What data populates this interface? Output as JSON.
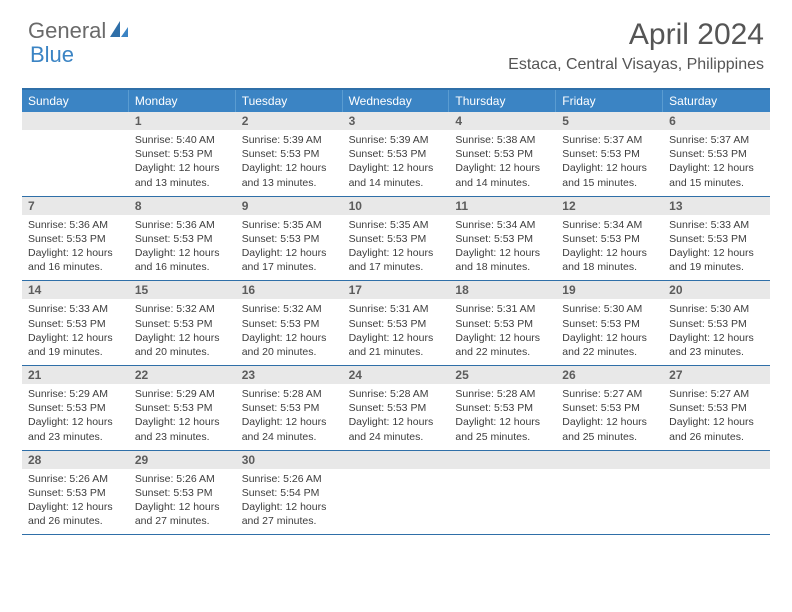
{
  "logo": {
    "general": "General",
    "blue": "Blue"
  },
  "title": "April 2024",
  "location": "Estaca, Central Visayas, Philippines",
  "colors": {
    "header_bg": "#3b84c4",
    "header_border_top": "#2f6fa8",
    "week_divider": "#2f6fa8",
    "daynum_bg": "#e8e8e8",
    "text": "#3d3d3d",
    "logo_gray": "#6a6a6a",
    "logo_blue": "#3b84c4"
  },
  "typography": {
    "title_fontsize": 30,
    "location_fontsize": 16,
    "weekday_fontsize": 12,
    "daynum_fontsize": 12,
    "body_fontsize": 10.5
  },
  "weekdays": [
    "Sunday",
    "Monday",
    "Tuesday",
    "Wednesday",
    "Thursday",
    "Friday",
    "Saturday"
  ],
  "weeks": [
    [
      {
        "n": "",
        "lines": []
      },
      {
        "n": "1",
        "lines": [
          "Sunrise: 5:40 AM",
          "Sunset: 5:53 PM",
          "Daylight: 12 hours",
          "and 13 minutes."
        ]
      },
      {
        "n": "2",
        "lines": [
          "Sunrise: 5:39 AM",
          "Sunset: 5:53 PM",
          "Daylight: 12 hours",
          "and 13 minutes."
        ]
      },
      {
        "n": "3",
        "lines": [
          "Sunrise: 5:39 AM",
          "Sunset: 5:53 PM",
          "Daylight: 12 hours",
          "and 14 minutes."
        ]
      },
      {
        "n": "4",
        "lines": [
          "Sunrise: 5:38 AM",
          "Sunset: 5:53 PM",
          "Daylight: 12 hours",
          "and 14 minutes."
        ]
      },
      {
        "n": "5",
        "lines": [
          "Sunrise: 5:37 AM",
          "Sunset: 5:53 PM",
          "Daylight: 12 hours",
          "and 15 minutes."
        ]
      },
      {
        "n": "6",
        "lines": [
          "Sunrise: 5:37 AM",
          "Sunset: 5:53 PM",
          "Daylight: 12 hours",
          "and 15 minutes."
        ]
      }
    ],
    [
      {
        "n": "7",
        "lines": [
          "Sunrise: 5:36 AM",
          "Sunset: 5:53 PM",
          "Daylight: 12 hours",
          "and 16 minutes."
        ]
      },
      {
        "n": "8",
        "lines": [
          "Sunrise: 5:36 AM",
          "Sunset: 5:53 PM",
          "Daylight: 12 hours",
          "and 16 minutes."
        ]
      },
      {
        "n": "9",
        "lines": [
          "Sunrise: 5:35 AM",
          "Sunset: 5:53 PM",
          "Daylight: 12 hours",
          "and 17 minutes."
        ]
      },
      {
        "n": "10",
        "lines": [
          "Sunrise: 5:35 AM",
          "Sunset: 5:53 PM",
          "Daylight: 12 hours",
          "and 17 minutes."
        ]
      },
      {
        "n": "11",
        "lines": [
          "Sunrise: 5:34 AM",
          "Sunset: 5:53 PM",
          "Daylight: 12 hours",
          "and 18 minutes."
        ]
      },
      {
        "n": "12",
        "lines": [
          "Sunrise: 5:34 AM",
          "Sunset: 5:53 PM",
          "Daylight: 12 hours",
          "and 18 minutes."
        ]
      },
      {
        "n": "13",
        "lines": [
          "Sunrise: 5:33 AM",
          "Sunset: 5:53 PM",
          "Daylight: 12 hours",
          "and 19 minutes."
        ]
      }
    ],
    [
      {
        "n": "14",
        "lines": [
          "Sunrise: 5:33 AM",
          "Sunset: 5:53 PM",
          "Daylight: 12 hours",
          "and 19 minutes."
        ]
      },
      {
        "n": "15",
        "lines": [
          "Sunrise: 5:32 AM",
          "Sunset: 5:53 PM",
          "Daylight: 12 hours",
          "and 20 minutes."
        ]
      },
      {
        "n": "16",
        "lines": [
          "Sunrise: 5:32 AM",
          "Sunset: 5:53 PM",
          "Daylight: 12 hours",
          "and 20 minutes."
        ]
      },
      {
        "n": "17",
        "lines": [
          "Sunrise: 5:31 AM",
          "Sunset: 5:53 PM",
          "Daylight: 12 hours",
          "and 21 minutes."
        ]
      },
      {
        "n": "18",
        "lines": [
          "Sunrise: 5:31 AM",
          "Sunset: 5:53 PM",
          "Daylight: 12 hours",
          "and 22 minutes."
        ]
      },
      {
        "n": "19",
        "lines": [
          "Sunrise: 5:30 AM",
          "Sunset: 5:53 PM",
          "Daylight: 12 hours",
          "and 22 minutes."
        ]
      },
      {
        "n": "20",
        "lines": [
          "Sunrise: 5:30 AM",
          "Sunset: 5:53 PM",
          "Daylight: 12 hours",
          "and 23 minutes."
        ]
      }
    ],
    [
      {
        "n": "21",
        "lines": [
          "Sunrise: 5:29 AM",
          "Sunset: 5:53 PM",
          "Daylight: 12 hours",
          "and 23 minutes."
        ]
      },
      {
        "n": "22",
        "lines": [
          "Sunrise: 5:29 AM",
          "Sunset: 5:53 PM",
          "Daylight: 12 hours",
          "and 23 minutes."
        ]
      },
      {
        "n": "23",
        "lines": [
          "Sunrise: 5:28 AM",
          "Sunset: 5:53 PM",
          "Daylight: 12 hours",
          "and 24 minutes."
        ]
      },
      {
        "n": "24",
        "lines": [
          "Sunrise: 5:28 AM",
          "Sunset: 5:53 PM",
          "Daylight: 12 hours",
          "and 24 minutes."
        ]
      },
      {
        "n": "25",
        "lines": [
          "Sunrise: 5:28 AM",
          "Sunset: 5:53 PM",
          "Daylight: 12 hours",
          "and 25 minutes."
        ]
      },
      {
        "n": "26",
        "lines": [
          "Sunrise: 5:27 AM",
          "Sunset: 5:53 PM",
          "Daylight: 12 hours",
          "and 25 minutes."
        ]
      },
      {
        "n": "27",
        "lines": [
          "Sunrise: 5:27 AM",
          "Sunset: 5:53 PM",
          "Daylight: 12 hours",
          "and 26 minutes."
        ]
      }
    ],
    [
      {
        "n": "28",
        "lines": [
          "Sunrise: 5:26 AM",
          "Sunset: 5:53 PM",
          "Daylight: 12 hours",
          "and 26 minutes."
        ]
      },
      {
        "n": "29",
        "lines": [
          "Sunrise: 5:26 AM",
          "Sunset: 5:53 PM",
          "Daylight: 12 hours",
          "and 27 minutes."
        ]
      },
      {
        "n": "30",
        "lines": [
          "Sunrise: 5:26 AM",
          "Sunset: 5:54 PM",
          "Daylight: 12 hours",
          "and 27 minutes."
        ]
      },
      {
        "n": "",
        "lines": []
      },
      {
        "n": "",
        "lines": []
      },
      {
        "n": "",
        "lines": []
      },
      {
        "n": "",
        "lines": []
      }
    ]
  ]
}
